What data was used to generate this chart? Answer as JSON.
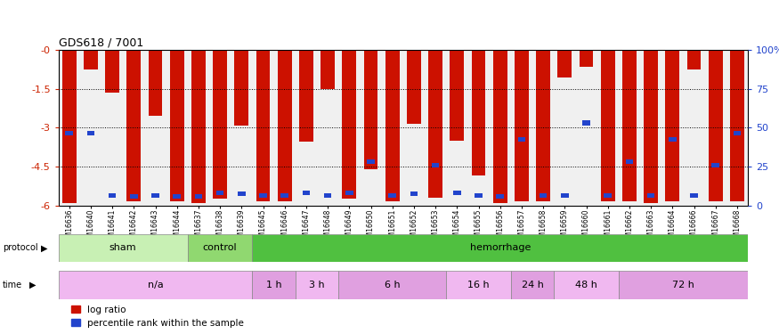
{
  "title": "GDS618 / 7001",
  "samples": [
    "GSM16636",
    "GSM16640",
    "GSM16641",
    "GSM16642",
    "GSM16643",
    "GSM16644",
    "GSM16637",
    "GSM16638",
    "GSM16639",
    "GSM16645",
    "GSM16646",
    "GSM16647",
    "GSM16648",
    "GSM16649",
    "GSM16650",
    "GSM16651",
    "GSM16652",
    "GSM16653",
    "GSM16654",
    "GSM16655",
    "GSM16656",
    "GSM16657",
    "GSM16658",
    "GSM16659",
    "GSM16660",
    "GSM16661",
    "GSM16662",
    "GSM16663",
    "GSM16664",
    "GSM16666",
    "GSM16667",
    "GSM16668"
  ],
  "log_ratio": [
    -5.9,
    -0.75,
    -1.65,
    -5.85,
    -2.55,
    -5.85,
    -5.9,
    -5.75,
    -2.9,
    -5.85,
    -5.85,
    -3.55,
    -1.5,
    -5.75,
    -4.6,
    -5.85,
    -2.85,
    -5.7,
    -3.5,
    -4.85,
    -5.9,
    -5.85,
    -5.85,
    -1.05,
    -0.65,
    -5.85,
    -5.85,
    -5.9,
    -5.85,
    -0.75,
    -5.85,
    -5.85
  ],
  "blue_position": [
    -3.3,
    -3.3,
    -5.7,
    -5.75,
    -5.7,
    -5.75,
    -5.75,
    -5.6,
    -5.65,
    -5.7,
    -5.7,
    -5.6,
    -5.7,
    -5.6,
    -4.4,
    -5.7,
    -5.65,
    -4.55,
    -5.6,
    -5.7,
    -5.75,
    -3.55,
    -5.7,
    -5.7,
    -2.9,
    -5.7,
    -4.4,
    -5.7,
    -3.55,
    -5.7,
    -4.55,
    -3.3
  ],
  "protocol_groups": [
    {
      "label": "sham",
      "start": 0,
      "end": 5,
      "color": "#c8f0b4"
    },
    {
      "label": "control",
      "start": 6,
      "end": 8,
      "color": "#90d870"
    },
    {
      "label": "hemorrhage",
      "start": 9,
      "end": 31,
      "color": "#50c040"
    }
  ],
  "time_groups": [
    {
      "label": "n/a",
      "start": 0,
      "end": 8,
      "color": "#f0b8f0"
    },
    {
      "label": "1 h",
      "start": 9,
      "end": 10,
      "color": "#e0a0e0"
    },
    {
      "label": "3 h",
      "start": 11,
      "end": 12,
      "color": "#f0b8f0"
    },
    {
      "label": "6 h",
      "start": 13,
      "end": 17,
      "color": "#e0a0e0"
    },
    {
      "label": "16 h",
      "start": 18,
      "end": 20,
      "color": "#f0b8f0"
    },
    {
      "label": "24 h",
      "start": 21,
      "end": 22,
      "color": "#e0a0e0"
    },
    {
      "label": "48 h",
      "start": 23,
      "end": 25,
      "color": "#f0b8f0"
    },
    {
      "label": "72 h",
      "start": 26,
      "end": 31,
      "color": "#e0a0e0"
    }
  ],
  "ylim": [
    -6,
    0
  ],
  "bar_color": "#cc1100",
  "percentile_color": "#2244cc",
  "background_color": "#ffffff",
  "axis_label_color_left": "#cc2200",
  "axis_label_color_right": "#2244cc",
  "plot_bg": "#f0f0f0"
}
